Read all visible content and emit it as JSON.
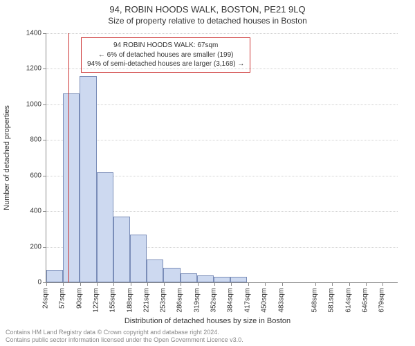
{
  "title_line1": "94, ROBIN HOODS WALK, BOSTON, PE21 9LQ",
  "title_line2": "Size of property relative to detached houses in Boston",
  "ylabel": "Number of detached properties",
  "xlabel": "Distribution of detached houses by size in Boston",
  "chart": {
    "type": "histogram",
    "background_color": "#ffffff",
    "bar_fill": "#cdd9f0",
    "bar_border": "#7a8db8",
    "grid_color": "#cfcfcf",
    "axis_color": "#888888",
    "ref_line_color": "#cc3333",
    "title_fontsize": 13,
    "subtitle_fontsize": 12,
    "label_fontsize": 11,
    "tick_fontsize": 10,
    "ylim": [
      0,
      1400
    ],
    "ytick_step": 200,
    "x_start": 24,
    "x_bin_width": 32.6,
    "n_bins": 21,
    "values": [
      70,
      1060,
      1160,
      620,
      370,
      270,
      130,
      80,
      50,
      40,
      30,
      30,
      0,
      0,
      0,
      0,
      0,
      0,
      0,
      0,
      0
    ],
    "xtick_labels": [
      "24sqm",
      "57sqm",
      "90sqm",
      "122sqm",
      "155sqm",
      "188sqm",
      "221sqm",
      "253sqm",
      "286sqm",
      "319sqm",
      "352sqm",
      "384sqm",
      "417sqm",
      "450sqm",
      "483sqm",
      "548sqm",
      "581sqm",
      "614sqm",
      "646sqm",
      "679sqm"
    ],
    "xtick_positions_sqm": [
      24,
      57,
      90,
      122,
      155,
      188,
      221,
      253,
      286,
      319,
      352,
      384,
      417,
      450,
      483,
      548,
      581,
      614,
      646,
      679
    ],
    "ref_value_sqm": 67
  },
  "info_box": {
    "line1": "94 ROBIN HOODS WALK: 67sqm",
    "line2": "← 6% of detached houses are smaller (199)",
    "line3": "94% of semi-detached houses are larger (3,168) →"
  },
  "footer_line1": "Contains HM Land Registry data © Crown copyright and database right 2024.",
  "footer_line2": "Contains public sector information licensed under the Open Government Licence v3.0."
}
